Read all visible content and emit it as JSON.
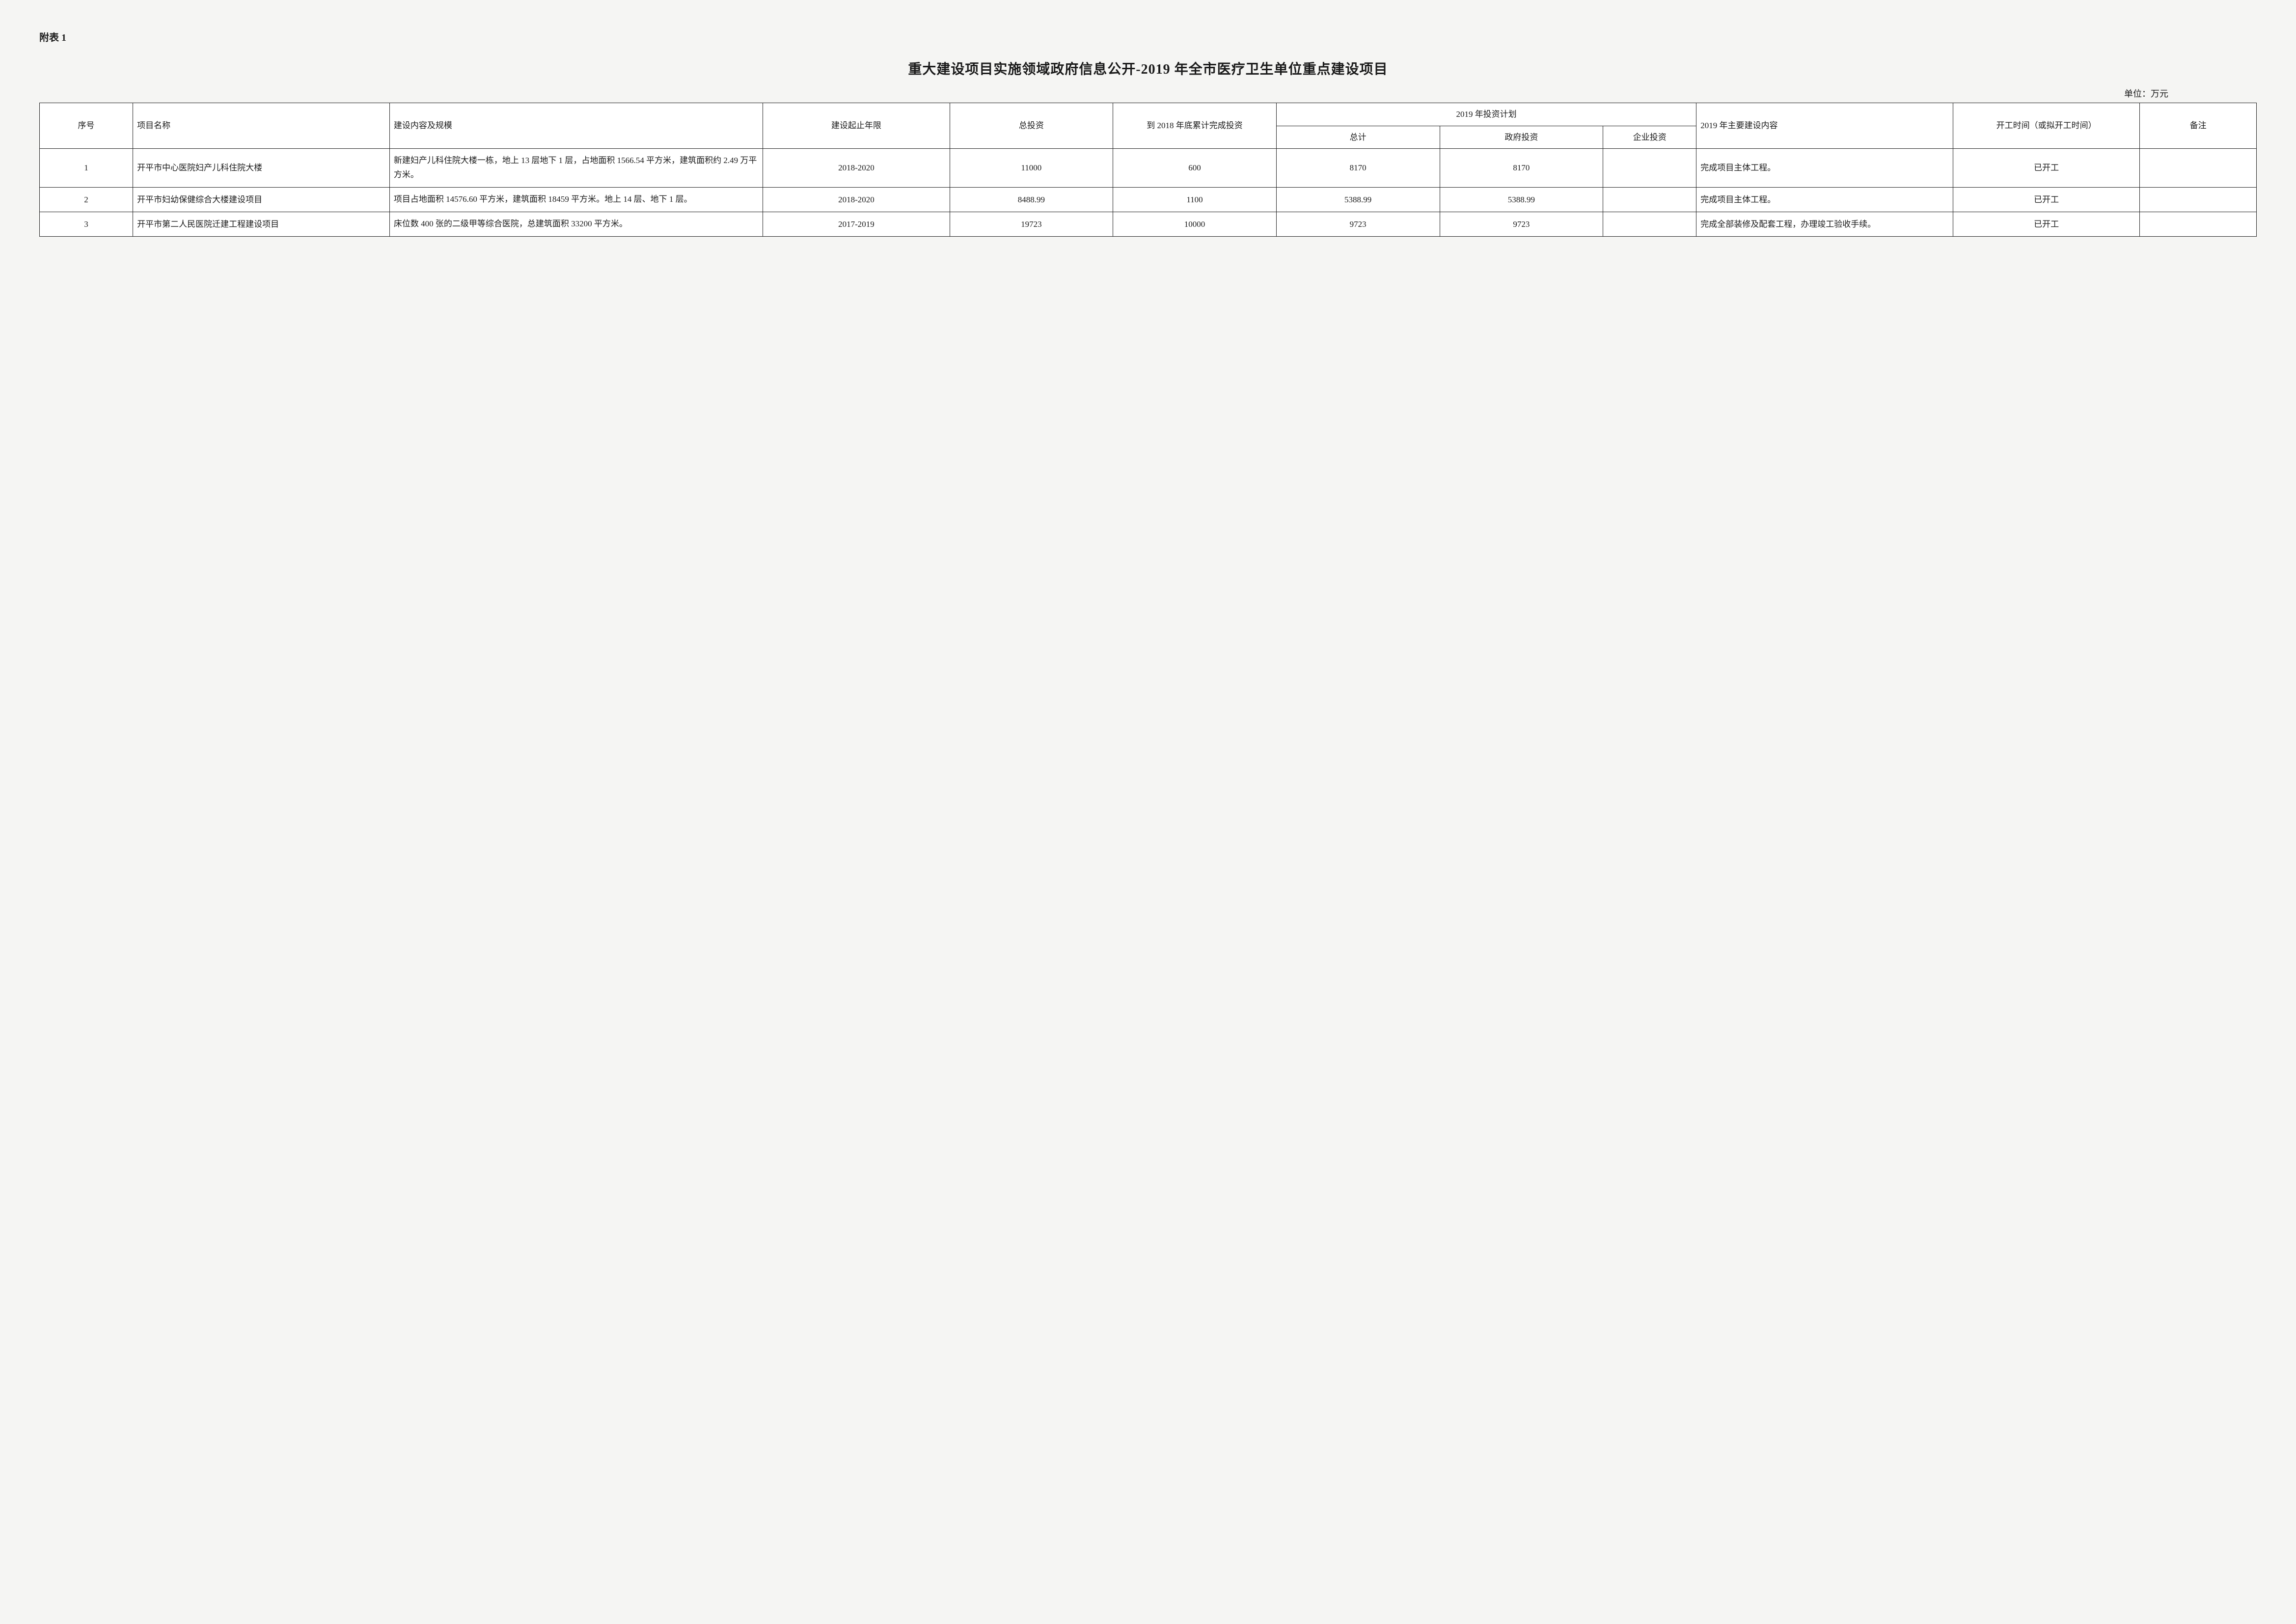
{
  "attachment_label": "附表 1",
  "title": "重大建设项目实施领域政府信息公开-2019 年全市医疗卫生单位重点建设项目",
  "unit_label": "单位：万元",
  "headers": {
    "seq": "序号",
    "project_name": "项目名称",
    "build_content": "建设内容及规模",
    "period": "建设起止年限",
    "total_investment": "总投资",
    "to_2018": "到 2018 年底累计完成投资",
    "plan_2019": "2019 年投资计划",
    "plan_total": "总计",
    "plan_gov": "政府投资",
    "plan_ent": "企业投资",
    "content_2019": "2019 年主要建设内容",
    "start_time": "开工时间（或拟开工时间）",
    "note": "备注"
  },
  "rows": [
    {
      "seq": "1",
      "project_name": "开平市中心医院妇产儿科住院大楼",
      "build_content": "新建妇产儿科住院大楼一栋，地上 13 层地下 1 层，占地面积 1566.54 平方米，建筑面积约 2.49 万平方米。",
      "period": "2018-2020",
      "total_investment": "11000",
      "to_2018": "600",
      "plan_total": "8170",
      "plan_gov": "8170",
      "plan_ent": "",
      "content_2019": "完成项目主体工程。",
      "start_time": "已开工",
      "note": ""
    },
    {
      "seq": "2",
      "project_name": "开平市妇幼保健综合大楼建设项目",
      "build_content": "项目占地面积 14576.60 平方米，建筑面积 18459 平方米。地上 14 层、地下 1 层。",
      "period": "2018-2020",
      "total_investment": "8488.99",
      "to_2018": "1100",
      "plan_total": "5388.99",
      "plan_gov": "5388.99",
      "plan_ent": "",
      "content_2019": "完成项目主体工程。",
      "start_time": "已开工",
      "note": ""
    },
    {
      "seq": "3",
      "project_name": "开平市第二人民医院迁建工程建设项目",
      "build_content": "床位数 400 张的二级甲等综合医院，总建筑面积 33200 平方米。",
      "period": "2017-2019",
      "total_investment": "19723",
      "to_2018": "10000",
      "plan_total": "9723",
      "plan_gov": "9723",
      "plan_ent": "",
      "content_2019": "完成全部装修及配套工程，办理竣工验收手续。",
      "start_time": "已开工",
      "note": ""
    }
  ],
  "styling": {
    "background_color": "#f5f5f3",
    "table_bg": "#ffffff",
    "border_color": "#222222",
    "text_color": "#1a1a1a",
    "title_fontsize": 28,
    "header_fontsize": 17,
    "cell_fontsize": 17,
    "font_family": "SimSun"
  }
}
